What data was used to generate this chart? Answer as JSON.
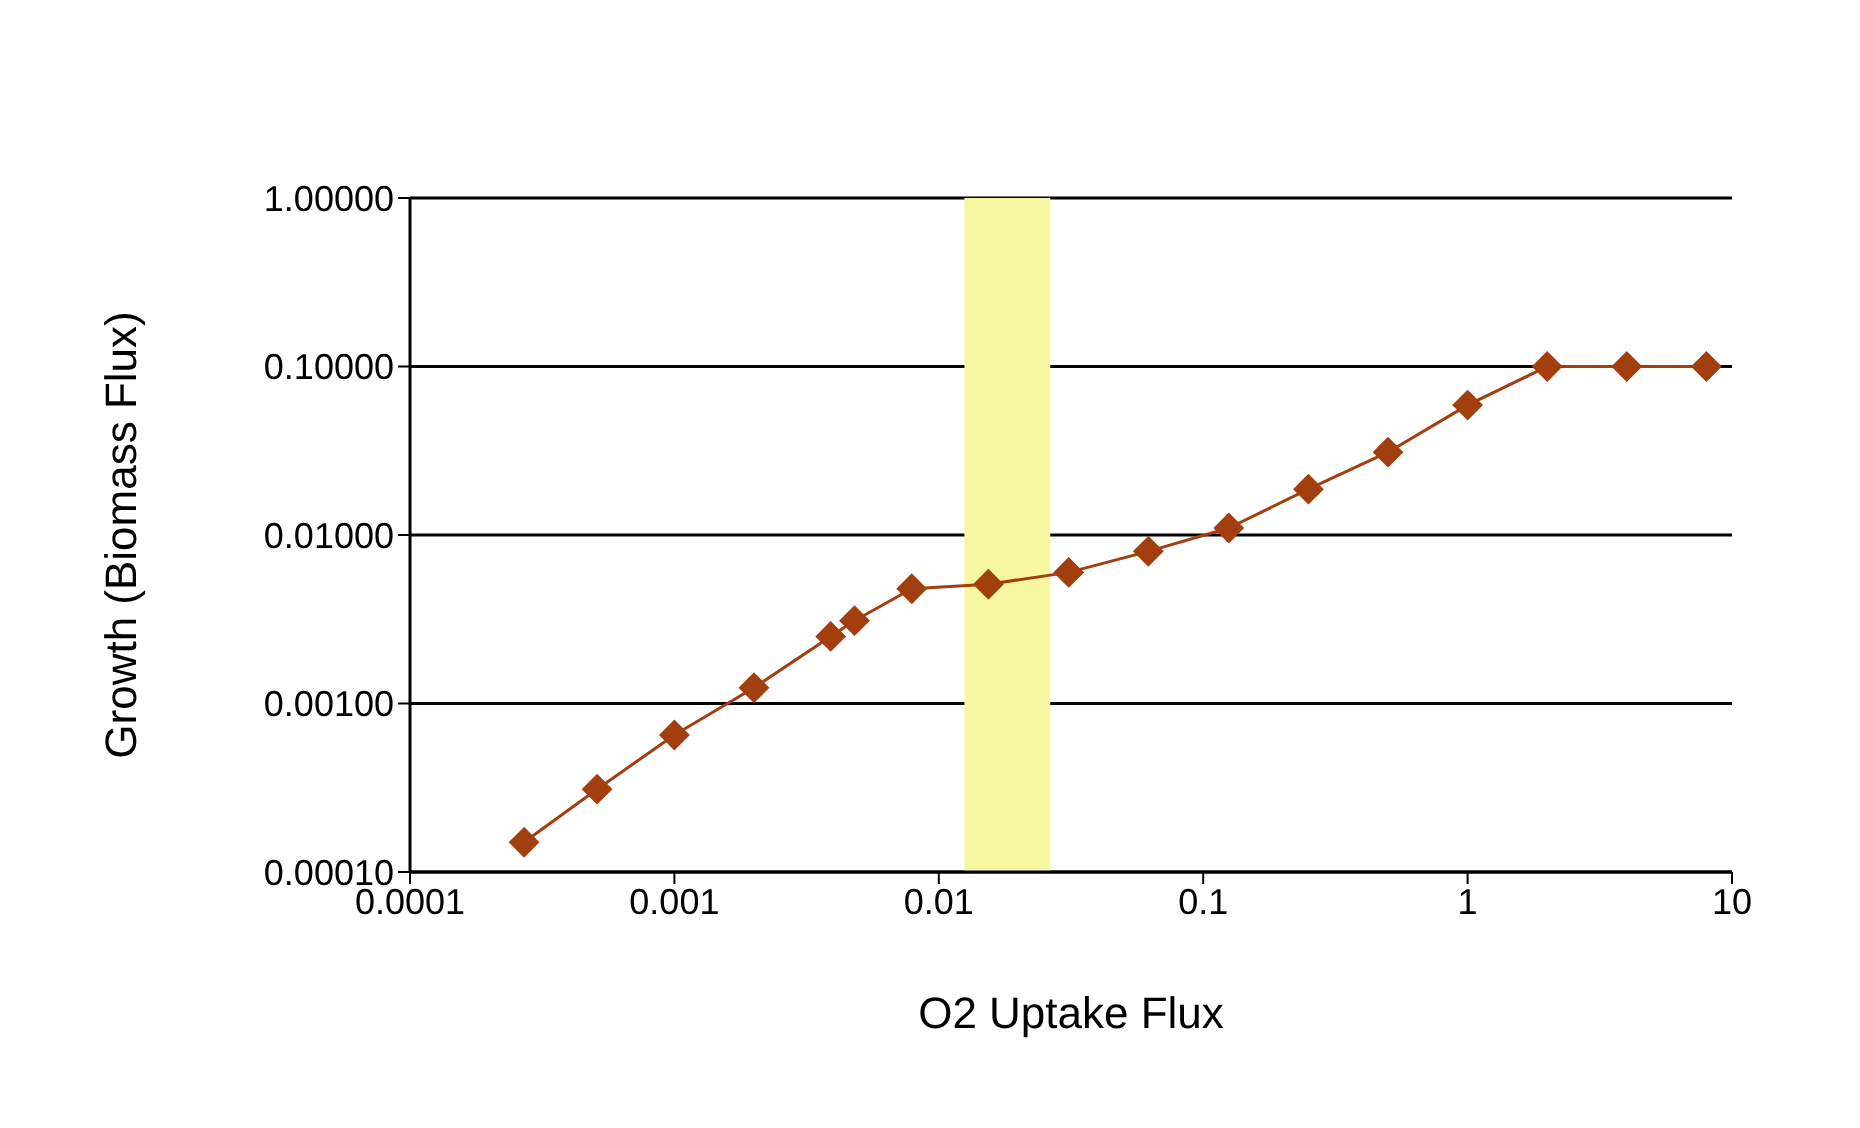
{
  "chart_data": {
    "type": "line",
    "xlabel": "O2 Uptake Flux",
    "ylabel": "Growth (Biomass Flux)",
    "log": "xy",
    "grid": "y",
    "marker": "diamond",
    "line_style": "solid",
    "xlim": [
      0.0001,
      10
    ],
    "xticks": [
      0.0001,
      0.001,
      0.01,
      0.1,
      1,
      10
    ],
    "ylim": [
      0.0001,
      1
    ],
    "yticks": [
      {
        "value": 0.0001,
        "label": "0.00010"
      },
      {
        "value": 0.001,
        "label": "0.00100"
      },
      {
        "value": 0.01,
        "label": "0.01000"
      },
      {
        "value": 0.1,
        "label": "0.10000"
      },
      {
        "value": 1,
        "label": "1.00000"
      }
    ],
    "x": [
      0.00027,
      0.00051,
      0.001,
      0.002,
      0.0039,
      0.0048,
      0.0079,
      0.0154,
      0.031,
      0.062,
      0.125,
      0.25,
      0.5,
      1,
      2,
      4,
      8
    ],
    "series": [
      {
        "color": "#a33f0e",
        "values": [
          0.00015,
          0.00031,
          0.00065,
          0.00124,
          0.0025,
          0.0031,
          0.0048,
          0.0051,
          0.006,
          0.008,
          0.011,
          0.0187,
          0.031,
          0.059,
          0.1,
          0.1,
          0.1
        ]
      }
    ],
    "bands": [
      {
        "axis": "x",
        "from": 0.0125,
        "to": 0.0264,
        "color": "#f7f7a0"
      }
    ]
  }
}
